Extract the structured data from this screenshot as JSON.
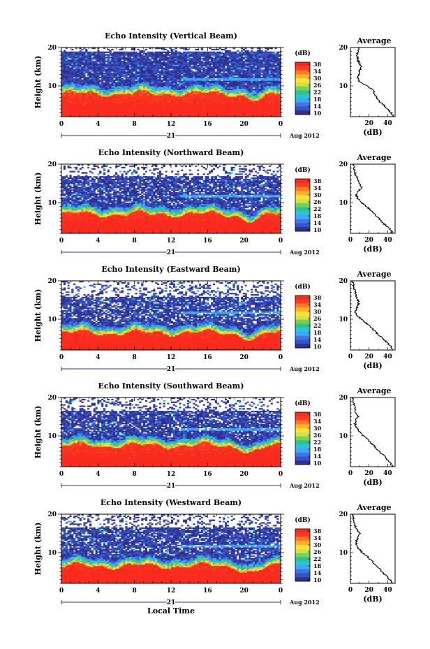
{
  "chart_data": [
    {
      "type": "heatmap",
      "title": "Echo Intensity (Vertical Beam)",
      "ylabel": "Height (km)",
      "x_ticks": [
        "0",
        "4",
        "8",
        "12",
        "16",
        "20",
        "0"
      ],
      "y_ticks": [
        "20",
        "10"
      ],
      "date_marker": "21",
      "date_label": "Aug 2012",
      "xlim": [
        0,
        24
      ],
      "ylim": [
        2,
        20
      ],
      "colorbar": {
        "label": "(dB)",
        "ticks": [
          "38",
          "34",
          "30",
          "26",
          "22",
          "18",
          "14",
          "10"
        ],
        "range": [
          10,
          38
        ]
      },
      "profile": {
        "title": "Average",
        "xlabel": "(dB)",
        "x_ticks": [
          "20",
          "40"
        ],
        "y_ticks": [
          "20",
          "10"
        ],
        "xlim": [
          0,
          48
        ],
        "height_km": [
          2,
          3,
          4,
          5,
          6,
          7,
          8,
          9,
          10,
          11,
          12,
          13,
          14,
          15,
          16,
          17,
          18,
          19,
          20
        ],
        "db": [
          46,
          44,
          40,
          36,
          31,
          28,
          26,
          24,
          18,
          10,
          8,
          9,
          10,
          12,
          9,
          8,
          7,
          8,
          9
        ]
      },
      "field": {
        "boundary_km": 8.0,
        "dip_center_hour": 21.5,
        "upper_cutoff_km": 19.0,
        "fill_prob": 0.95
      }
    },
    {
      "type": "heatmap",
      "title": "Echo Intensity (Northward Beam)",
      "ylabel": "Height (km)",
      "x_ticks": [
        "0",
        "4",
        "8",
        "12",
        "16",
        "20",
        "0"
      ],
      "y_ticks": [
        "20",
        "10"
      ],
      "date_marker": "21",
      "date_label": "Aug 2012",
      "xlim": [
        0,
        24
      ],
      "ylim": [
        2,
        20
      ],
      "colorbar": {
        "label": "(dB)",
        "ticks": [
          "38",
          "34",
          "30",
          "26",
          "22",
          "18",
          "14",
          "10"
        ],
        "range": [
          10,
          38
        ]
      },
      "profile": {
        "title": "Average",
        "xlabel": "(dB)",
        "x_ticks": [
          "0",
          "20",
          "40"
        ],
        "y_ticks": [
          "20",
          "10"
        ],
        "xlim": [
          0,
          48
        ],
        "height_km": [
          2,
          3,
          4,
          5,
          6,
          7,
          8,
          9,
          10,
          11,
          12,
          13,
          14,
          15,
          16,
          17,
          18,
          19,
          20
        ],
        "db": [
          45,
          43,
          38,
          34,
          30,
          26,
          22,
          17,
          12,
          8,
          6,
          9,
          12,
          10,
          8,
          6,
          5,
          4,
          3
        ]
      },
      "field": {
        "boundary_km": 7.0,
        "dip_center_hour": 21.0,
        "upper_cutoff_km": 17.0,
        "fill_prob": 0.85
      }
    },
    {
      "type": "heatmap",
      "title": "Echo Intensity (Eastward Beam)",
      "ylabel": "Height (km)",
      "x_ticks": [
        "0",
        "4",
        "8",
        "12",
        "16",
        "20",
        "0"
      ],
      "y_ticks": [
        "20",
        "10"
      ],
      "date_marker": "21",
      "date_label": "Aug 2012",
      "xlim": [
        0,
        24
      ],
      "ylim": [
        2,
        20
      ],
      "colorbar": {
        "label": "(dB)",
        "ticks": [
          "38",
          "34",
          "30",
          "26",
          "22",
          "18",
          "14",
          "10"
        ],
        "range": [
          10,
          38
        ]
      },
      "profile": {
        "title": "Average",
        "xlabel": "(dB)",
        "x_ticks": [
          "0",
          "20",
          "40"
        ],
        "y_ticks": [
          "20",
          "10"
        ],
        "xlim": [
          0,
          48
        ],
        "height_km": [
          2,
          3,
          4,
          5,
          6,
          7,
          8,
          9,
          10,
          11,
          12,
          13,
          14,
          15,
          16,
          17,
          18,
          19,
          20
        ],
        "db": [
          46,
          43,
          39,
          35,
          30,
          26,
          22,
          17,
          12,
          7,
          5,
          7,
          9,
          8,
          6,
          5,
          4,
          3,
          2
        ]
      },
      "field": {
        "boundary_km": 6.5,
        "dip_center_hour": 21.0,
        "upper_cutoff_km": 16.0,
        "fill_prob": 0.8
      }
    },
    {
      "type": "heatmap",
      "title": "Echo Intensity (Southward Beam)",
      "ylabel": "Height (km)",
      "x_ticks": [
        "0",
        "4",
        "8",
        "12",
        "16",
        "20",
        "0"
      ],
      "y_ticks": [
        "20",
        "10"
      ],
      "date_marker": "21",
      "date_label": "Aug 2012",
      "xlim": [
        0,
        24
      ],
      "ylim": [
        2,
        20
      ],
      "colorbar": {
        "label": "(dB)",
        "ticks": [
          "38",
          "34",
          "30",
          "26",
          "22",
          "18",
          "14",
          "10"
        ],
        "range": [
          10,
          38
        ]
      },
      "profile": {
        "title": "Average",
        "xlabel": "(dB)",
        "x_ticks": [
          "0",
          "20",
          "40"
        ],
        "y_ticks": [
          "20",
          "10"
        ],
        "xlim": [
          0,
          48
        ],
        "height_km": [
          2,
          3,
          4,
          5,
          6,
          7,
          8,
          9,
          10,
          11,
          12,
          13,
          14,
          15,
          16,
          17,
          18,
          19,
          20
        ],
        "db": [
          45,
          43,
          39,
          35,
          31,
          27,
          23,
          19,
          14,
          10,
          7,
          5,
          6,
          8,
          6,
          5,
          4,
          3,
          2
        ]
      },
      "field": {
        "boundary_km": 7.5,
        "dip_center_hour": 21.0,
        "upper_cutoff_km": 16.5,
        "fill_prob": 0.85
      }
    },
    {
      "type": "heatmap",
      "title": "Echo Intensity (Westward Beam)",
      "ylabel": "Height (km)",
      "x_ticks": [
        "0",
        "4",
        "8",
        "12",
        "16",
        "20",
        "0"
      ],
      "y_ticks": [
        "20",
        "10"
      ],
      "date_marker": "21",
      "date_label": "Aug 2012",
      "xlim": [
        0,
        24
      ],
      "ylim": [
        2,
        20
      ],
      "colorbar": {
        "label": "(dB)",
        "ticks": [
          "38",
          "34",
          "30",
          "26",
          "22",
          "18",
          "14",
          "10"
        ],
        "range": [
          10,
          38
        ]
      },
      "profile": {
        "title": "Average",
        "xlabel": "(dB)",
        "x_ticks": [
          "0",
          "20",
          "40"
        ],
        "y_ticks": [
          "20",
          "10"
        ],
        "xlim": [
          0,
          48
        ],
        "height_km": [
          2,
          3,
          4,
          5,
          6,
          7,
          8,
          9,
          10,
          11,
          12,
          13,
          14,
          15,
          16,
          17,
          18,
          19,
          20
        ],
        "db": [
          45,
          42,
          38,
          34,
          30,
          26,
          22,
          18,
          13,
          9,
          7,
          6,
          8,
          10,
          7,
          5,
          4,
          3,
          2
        ]
      },
      "field": {
        "boundary_km": 6.5,
        "dip_center_hour": 21.0,
        "upper_cutoff_km": 16.5,
        "fill_prob": 0.85
      }
    }
  ],
  "xlabel": "Local Time",
  "colormap": [
    "#2e3192",
    "#3953c5",
    "#3f75e6",
    "#42a5f5",
    "#26c6da",
    "#2ec28f",
    "#7bd14f",
    "#cfe34a",
    "#ffe135",
    "#ffb12a",
    "#ff7a24",
    "#ff3d1f",
    "#f92a1e"
  ]
}
